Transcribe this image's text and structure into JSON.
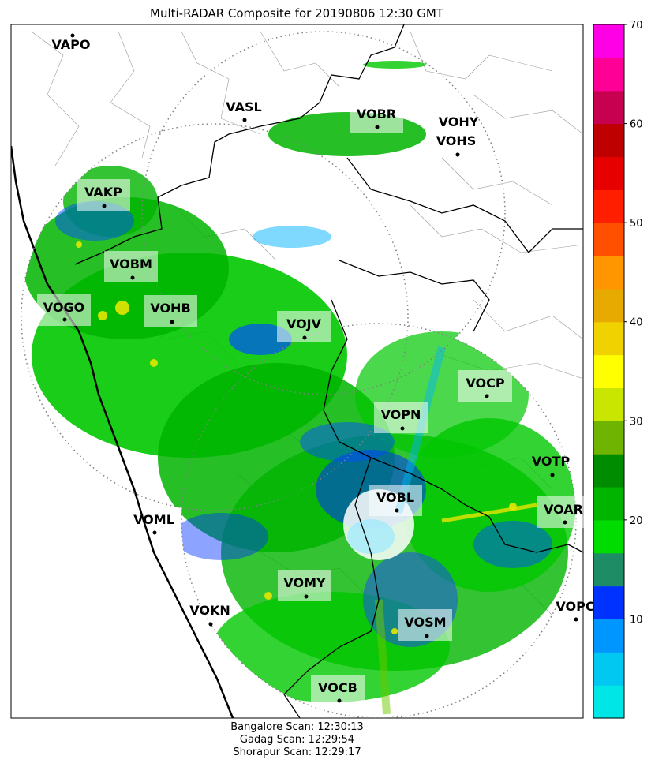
{
  "title": "Multi-RADAR Composite for 20190806 12:30 GMT",
  "footer": {
    "lines": [
      "Bangalore Scan: 12:30:13",
      "Gadag Scan: 12:29:54",
      "Shorapur Scan: 12:29:17"
    ]
  },
  "stations": [
    {
      "code": "VAPO",
      "highlight": false
    },
    {
      "code": "VASL",
      "highlight": false
    },
    {
      "code": "VOBR",
      "highlight": true
    },
    {
      "code": "VOHY",
      "highlight": false
    },
    {
      "code": "VOHS",
      "highlight": false
    },
    {
      "code": "VAKP",
      "highlight": true
    },
    {
      "code": "VOBM",
      "highlight": true
    },
    {
      "code": "VOGO",
      "highlight": true
    },
    {
      "code": "VOHB",
      "highlight": true
    },
    {
      "code": "VOJV",
      "highlight": true
    },
    {
      "code": "VOCP",
      "highlight": true
    },
    {
      "code": "VOPN",
      "highlight": true
    },
    {
      "code": "VOTP",
      "highlight": false
    },
    {
      "code": "VOBL",
      "highlight": true
    },
    {
      "code": "VOAR",
      "highlight": true
    },
    {
      "code": "VOML",
      "highlight": false
    },
    {
      "code": "VOMY",
      "highlight": true
    },
    {
      "code": "VOKN",
      "highlight": false
    },
    {
      "code": "VOSM",
      "highlight": true
    },
    {
      "code": "VOPC",
      "highlight": false
    },
    {
      "code": "VOCB",
      "highlight": true
    }
  ],
  "colorbar": {
    "min": 0,
    "max": 70,
    "ticks": [
      "10",
      "20",
      "30",
      "40",
      "50",
      "60",
      "70"
    ],
    "colors": [
      "#00e5e5",
      "#00c8f0",
      "#0096ff",
      "#0032ff",
      "#1e8c64",
      "#00dc00",
      "#00b400",
      "#008c00",
      "#6eb400",
      "#c8e600",
      "#ffff00",
      "#f0d200",
      "#e6aa00",
      "#ff9600",
      "#ff5000",
      "#ff1e00",
      "#e60000",
      "#be0000",
      "#c80050",
      "#ff0096",
      "#ff00e6"
    ]
  }
}
